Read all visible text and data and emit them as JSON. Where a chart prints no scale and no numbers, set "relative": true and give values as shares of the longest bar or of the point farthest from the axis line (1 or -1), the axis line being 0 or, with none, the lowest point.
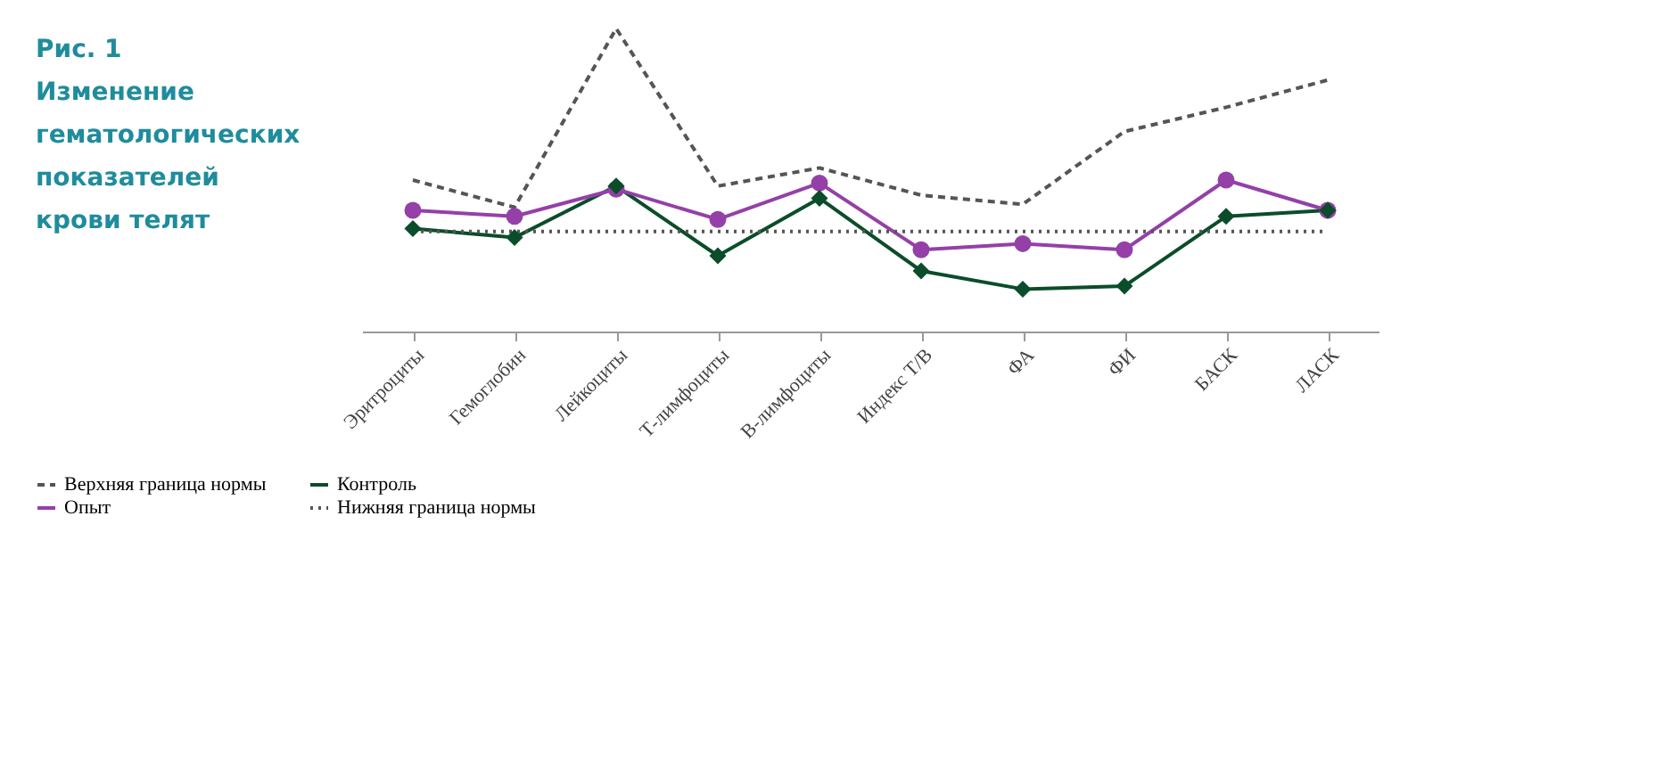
{
  "chart_data": {
    "type": "line",
    "title": "Рис. 1",
    "subtitle": "Изменение гематологических показателей крови телят",
    "relative": true,
    "grid": false,
    "legend": "bottom",
    "categories": [
      "Эритроциты",
      "Гемоглобин",
      "Лейкоциты",
      "Т-лимфоциты",
      "В-лимфоциты",
      "Индекс Т/В",
      "ФА",
      "ФИ",
      "БАСК",
      "ЛАСК"
    ],
    "series": [
      {
        "name": "Верхняя граница нормы",
        "color": "#555555",
        "line_style": "dashed",
        "marker": "none",
        "values": [
          0.5,
          0.41,
          1.0,
          0.48,
          0.54,
          0.45,
          0.42,
          0.66,
          0.74,
          0.83
        ]
      },
      {
        "name": "Контроль",
        "color": "#0b4d2a",
        "line_style": "solid",
        "marker": "diamond",
        "values": [
          0.34,
          0.31,
          0.48,
          0.25,
          0.44,
          0.2,
          0.14,
          0.15,
          0.38,
          0.4
        ]
      },
      {
        "name": "Опыт",
        "color": "#9440a8",
        "line_style": "solid",
        "marker": "circle",
        "values": [
          0.4,
          0.38,
          0.47,
          0.37,
          0.49,
          0.27,
          0.29,
          0.27,
          0.5,
          0.4
        ]
      },
      {
        "name": "Нижняя граница нормы",
        "color": "#555555",
        "line_style": "dotted",
        "marker": "none",
        "values": [
          0.33,
          0.33,
          0.33,
          0.33,
          0.33,
          0.33,
          0.33,
          0.33,
          0.33,
          0.33
        ]
      }
    ]
  }
}
